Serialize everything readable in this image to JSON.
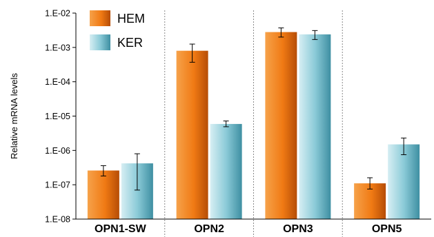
{
  "chart_data": {
    "type": "bar",
    "scale": "log",
    "title": "",
    "xlabel": "",
    "ylabel": "Relative mRNA levels",
    "ylim": [
      1e-08,
      0.01
    ],
    "yticks": [
      {
        "value": 0.01,
        "label": "1.E-02"
      },
      {
        "value": 0.001,
        "label": "1.E-03"
      },
      {
        "value": 0.0001,
        "label": "1.E-04"
      },
      {
        "value": 1e-05,
        "label": "1.E-05"
      },
      {
        "value": 1e-06,
        "label": "1.E-06"
      },
      {
        "value": 1e-07,
        "label": "1.E-07"
      },
      {
        "value": 1e-08,
        "label": "1.E-08"
      }
    ],
    "categories": [
      "OPN1-SW",
      "OPN2",
      "OPN3",
      "OPN5"
    ],
    "series": [
      {
        "name": "HEM",
        "color": "#f07a14",
        "values": [
          2.6e-07,
          0.0008,
          0.0028,
          1.1e-07
        ],
        "error_low": [
          1.8e-07,
          0.00037,
          0.002,
          7.5e-08
        ],
        "error_high": [
          3.6e-07,
          0.00125,
          0.0037,
          1.6e-07
        ]
      },
      {
        "name": "KER",
        "color": "#4ea6b8",
        "values": [
          4.2e-07,
          5.9e-06,
          0.0024,
          1.5e-06
        ],
        "error_low": [
          7e-08,
          4.9e-06,
          0.0017,
          7.5e-07
        ],
        "error_high": [
          8e-07,
          7.2e-06,
          0.0031,
          2.3e-06
        ]
      }
    ],
    "grid": false,
    "category_separators": "dotted",
    "legend_position": "top-left"
  }
}
